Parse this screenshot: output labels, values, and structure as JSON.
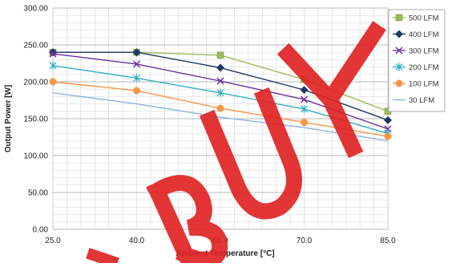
{
  "chart_data": {
    "type": "line",
    "xlabel": "Ambient Temperature [°C]",
    "ylabel": "Output Power [W]",
    "x": [
      25.0,
      40.0,
      55.0,
      70.0,
      85.0
    ],
    "x_tick_labels": [
      "25.0",
      "40.0",
      "55.0",
      "70.0",
      "85.0"
    ],
    "xlim": [
      25,
      85
    ],
    "ylim": [
      0,
      300
    ],
    "y_tick_labels": [
      "0.00",
      "50.00",
      "100.00",
      "150.00",
      "200.00",
      "250.00",
      "300.00"
    ],
    "grid": true,
    "legend_position": "top-right",
    "series": [
      {
        "name": "500 LFM",
        "color": "#9bbb59",
        "marker": "square",
        "values": [
          240,
          240,
          236,
          203,
          160
        ]
      },
      {
        "name": "400 LFM",
        "color": "#1f3864",
        "marker": "diamond",
        "values": [
          240,
          240,
          219,
          189,
          148
        ]
      },
      {
        "name": "300 LFM",
        "color": "#7030a0",
        "marker": "x",
        "values": [
          238,
          224,
          201,
          176,
          136
        ]
      },
      {
        "name": "200 LFM",
        "color": "#31b0c6",
        "marker": "star",
        "values": [
          222,
          205,
          185,
          163,
          130
        ]
      },
      {
        "name": "100 LFM",
        "color": "#f79646",
        "marker": "circle",
        "values": [
          200,
          188,
          164,
          145,
          126
        ]
      },
      {
        "name": "30 LFM",
        "color": "#8db4e2",
        "marker": "none",
        "values": [
          185,
          170,
          152,
          138,
          120
        ]
      }
    ]
  },
  "watermark": {
    "text": "BUY",
    "color": "#e02020"
  }
}
